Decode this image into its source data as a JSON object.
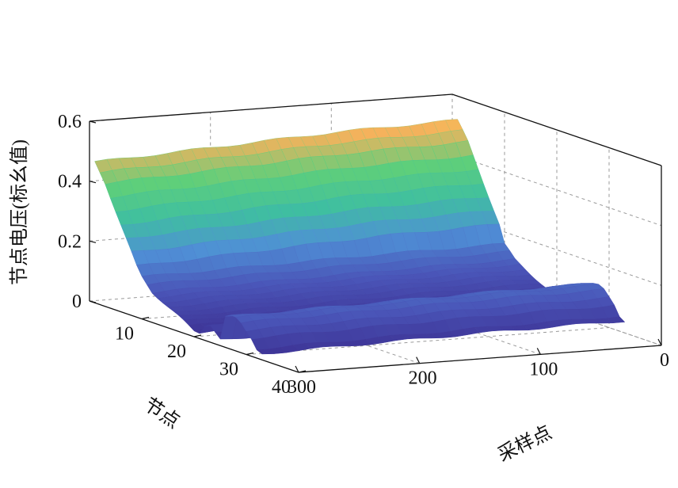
{
  "chart_data": {
    "type": "surface",
    "title": "",
    "xlabel": "节点",
    "ylabel": "采样点",
    "zlabel": "节点电压(标幺值)",
    "xlim": [
      0,
      40
    ],
    "ylim": [
      0,
      300
    ],
    "zlim": [
      0,
      0.6
    ],
    "x_ticks": [
      "10",
      "20",
      "30",
      "40"
    ],
    "y_ticks": [
      "0",
      "100",
      "200",
      "300"
    ],
    "z_ticks": [
      "0",
      "0.2",
      "0.4",
      "0.6"
    ],
    "grid": true,
    "colormap": [
      "#3b2d8f",
      "#4a55b8",
      "#4f8fd6",
      "#3fbfa0",
      "#5fcf7a",
      "#f5b25c",
      "#f0e545"
    ],
    "node_voltage_profile": {
      "node": [
        1,
        2,
        3,
        4,
        5,
        6,
        7,
        8,
        9,
        10,
        11,
        12,
        13,
        14,
        15,
        16,
        17,
        18,
        19,
        20,
        21,
        22,
        23,
        24,
        25,
        26,
        27,
        28,
        29,
        30,
        31,
        32,
        33
      ],
      "voltage": [
        0.47,
        0.44,
        0.41,
        0.37,
        0.33,
        0.29,
        0.25,
        0.21,
        0.17,
        0.14,
        0.12,
        0.1,
        0.09,
        0.08,
        0.07,
        0.06,
        0.05,
        0.04,
        0.03,
        0.02,
        0.02,
        0.05,
        0.06,
        0.04,
        0.02,
        0.1,
        0.11,
        0.11,
        0.1,
        0.08,
        0.06,
        0.03,
        0.02
      ]
    },
    "sampling_point_offset": {
      "sample": [
        0,
        100,
        200,
        300
      ],
      "offset": [
        0.05,
        0.04,
        0.02,
        0.0
      ]
    }
  }
}
